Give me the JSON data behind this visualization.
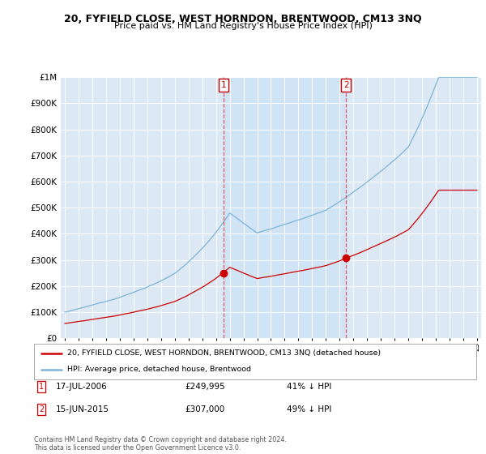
{
  "title": "20, FYFIELD CLOSE, WEST HORNDON, BRENTWOOD, CM13 3NQ",
  "subtitle": "Price paid vs. HM Land Registry's House Price Index (HPI)",
  "hpi_color": "#7ab4d8",
  "price_color": "#cc0000",
  "shade_color": "#d0e4f5",
  "plot_bg_color": "#dce9f5",
  "ylim": [
    0,
    1000000
  ],
  "yticks": [
    0,
    100000,
    200000,
    300000,
    400000,
    500000,
    600000,
    700000,
    800000,
    900000,
    1000000
  ],
  "sale1_year": 2006.54,
  "sale1_price": 249995,
  "sale2_year": 2015.46,
  "sale2_price": 307000,
  "legend_line1": "20, FYFIELD CLOSE, WEST HORNDON, BRENTWOOD, CM13 3NQ (detached house)",
  "legend_line2": "HPI: Average price, detached house, Brentwood",
  "footer": "Contains HM Land Registry data © Crown copyright and database right 2024.\nThis data is licensed under the Open Government Licence v3.0.",
  "xstart_year": 1995,
  "xend_year": 2025
}
